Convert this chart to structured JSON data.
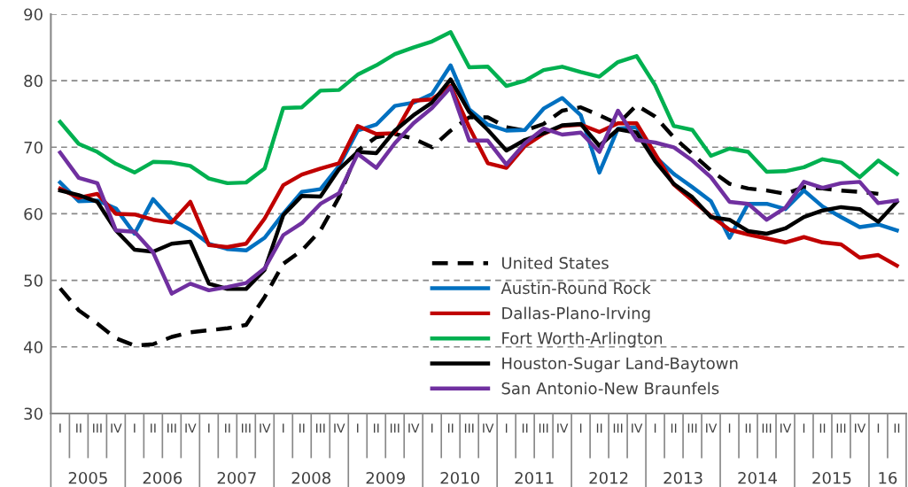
{
  "chart_data": {
    "type": "line",
    "categories": [
      "I",
      "II",
      "III",
      "IV",
      "I",
      "II",
      "III",
      "IV",
      "I",
      "II",
      "III",
      "IV",
      "I",
      "II",
      "III",
      "IV",
      "I",
      "II",
      "III",
      "IV",
      "I",
      "II",
      "III",
      "IV",
      "I",
      "II",
      "III",
      "IV",
      "I",
      "II",
      "III",
      "IV",
      "I",
      "II",
      "III",
      "IV",
      "I",
      "II",
      "III",
      "IV",
      "I",
      "II",
      "III",
      "IV",
      "I",
      "II"
    ],
    "annotations": [
      "2005",
      "2006",
      "2007",
      "2008",
      "2009",
      "2010",
      "2011",
      "2012",
      "2013",
      "2014",
      "2015",
      "16"
    ],
    "ylim": [
      30,
      90
    ],
    "yticks": [
      30,
      40,
      50,
      60,
      70,
      80,
      90
    ],
    "grid": "y",
    "legend": "bottom",
    "marker": "none",
    "series": [
      {
        "name": "United States",
        "color": "#000000",
        "line_style": "dashed",
        "values": [
          48.8,
          45.5,
          43.5,
          41.3,
          40.2,
          40.4,
          41.5,
          42.2,
          42.5,
          42.8,
          43.3,
          47.5,
          52.5,
          54.5,
          57.5,
          62.5,
          69.5,
          71.5,
          72.0,
          71.3,
          70.0,
          72.5,
          74.5,
          74.5,
          73.0,
          72.5,
          73.5,
          75.5,
          76.0,
          74.8,
          73.5,
          76.3,
          74.6,
          71.5,
          69.0,
          66.5,
          64.5,
          63.8,
          63.5,
          63.0,
          64.0,
          63.8,
          63.5,
          63.3,
          63.0,
          null
        ]
      },
      {
        "name": "Austin-Round Rock",
        "color": "#0070c0",
        "line_style": "solid",
        "values": [
          64.7,
          61.9,
          62.0,
          60.8,
          57.0,
          62.2,
          59.1,
          57.6,
          55.5,
          54.7,
          54.5,
          56.4,
          60.0,
          63.3,
          63.7,
          67.2,
          72.5,
          73.4,
          76.2,
          76.7,
          78.0,
          82.3,
          75.7,
          73.4,
          72.5,
          72.6,
          75.8,
          77.4,
          74.8,
          66.2,
          72.8,
          73.0,
          68.6,
          66.0,
          64.0,
          61.9,
          56.4,
          61.5,
          61.5,
          60.7,
          63.5,
          61.1,
          59.5,
          58.0,
          58.4,
          57.5
        ]
      },
      {
        "name": "Dallas-Plano-Irving",
        "color": "#c00000",
        "line_style": "solid",
        "values": [
          63.8,
          62.4,
          63.0,
          60.0,
          59.9,
          59.1,
          58.7,
          61.8,
          55.3,
          55.0,
          55.5,
          59.3,
          64.3,
          65.9,
          66.8,
          67.6,
          73.2,
          72.0,
          72.1,
          77.0,
          77.2,
          79.2,
          73.0,
          67.6,
          66.9,
          70.2,
          72.0,
          73.2,
          73.4,
          72.3,
          73.6,
          73.6,
          69.0,
          64.4,
          62.0,
          59.7,
          57.6,
          56.9,
          56.3,
          55.7,
          56.5,
          55.7,
          55.4,
          53.4,
          53.8,
          52.2
        ]
      },
      {
        "name": "Fort Worth-Arlington",
        "color": "#00b050",
        "line_style": "solid",
        "values": [
          73.8,
          70.5,
          69.3,
          67.5,
          66.2,
          67.8,
          67.7,
          67.2,
          65.3,
          64.6,
          64.7,
          66.8,
          75.9,
          76.0,
          78.5,
          78.6,
          80.9,
          82.3,
          84.0,
          85.0,
          85.9,
          87.3,
          82.0,
          82.1,
          79.2,
          80.0,
          81.6,
          82.1,
          81.3,
          80.6,
          82.8,
          83.7,
          79.3,
          73.2,
          72.6,
          68.7,
          69.8,
          69.3,
          66.3,
          66.4,
          67.0,
          68.2,
          67.7,
          65.5,
          68.0,
          66.0
        ]
      },
      {
        "name": "Houston-Sugar Land-Baytown",
        "color": "#000000",
        "line_style": "solid",
        "values": [
          63.5,
          62.8,
          61.8,
          57.5,
          54.6,
          54.3,
          55.5,
          55.8,
          49.5,
          48.7,
          48.7,
          51.6,
          59.8,
          62.7,
          62.6,
          66.7,
          69.3,
          69.1,
          72.5,
          74.8,
          76.7,
          80.2,
          75.3,
          72.6,
          69.5,
          71.1,
          72.1,
          73.3,
          73.5,
          70.2,
          72.7,
          72.2,
          67.9,
          64.5,
          62.5,
          59.5,
          59.1,
          57.4,
          57.0,
          57.8,
          59.5,
          60.5,
          61.0,
          60.7,
          58.8,
          61.8
        ]
      },
      {
        "name": "San Antonio-New Braunfels",
        "color": "#7030a0",
        "line_style": "solid",
        "values": [
          69.2,
          65.4,
          64.6,
          57.5,
          57.3,
          54.2,
          48.0,
          49.5,
          48.5,
          49.0,
          49.6,
          51.8,
          56.8,
          58.6,
          61.5,
          63.1,
          69.0,
          66.9,
          70.6,
          73.6,
          75.9,
          79.0,
          71.0,
          71.0,
          67.4,
          70.6,
          72.8,
          71.9,
          72.2,
          69.3,
          75.5,
          71.1,
          70.7,
          70.0,
          68.0,
          65.5,
          61.8,
          61.5,
          59.1,
          60.9,
          64.8,
          63.9,
          64.6,
          64.8,
          61.6,
          62.0
        ]
      }
    ]
  }
}
